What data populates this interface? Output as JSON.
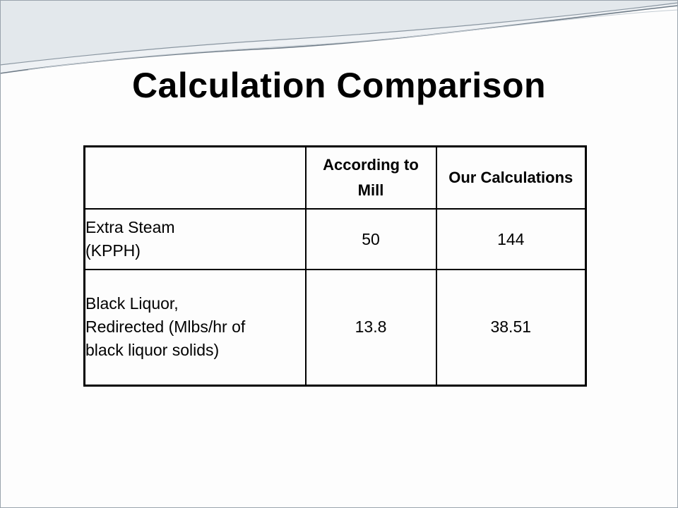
{
  "slide": {
    "title": "Calculation Comparison"
  },
  "table": {
    "columns": [
      "",
      "According to Mill",
      "Our Calculations"
    ],
    "rows": [
      {
        "label": "Extra Steam (KPPH)",
        "mill": "50",
        "ours": "144"
      },
      {
        "label": "Black Liquor, Redirected (Mlbs/hr of black liquor solids)",
        "mill": "13.8",
        "ours": "38.51"
      }
    ]
  },
  "colors": {
    "background": "#fdfdfd",
    "text": "#000000",
    "swoosh_fill": "#e6eaee",
    "swoosh_line": "#7d8a96"
  }
}
